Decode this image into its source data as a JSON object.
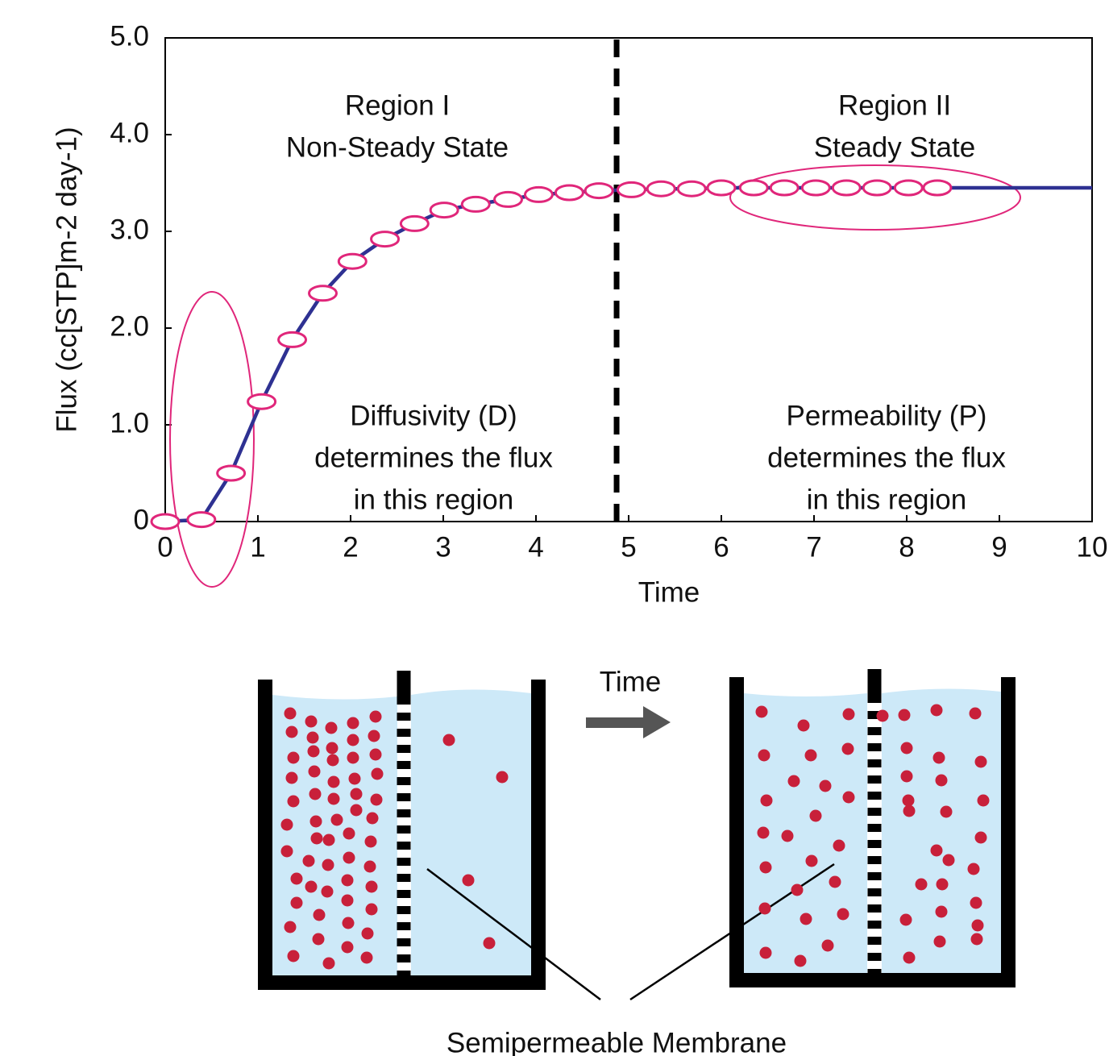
{
  "chart_data": {
    "type": "line",
    "x_label": "Time",
    "y_label": "Flux (cc[STP]m-2 day-1)",
    "xlim": [
      0,
      10
    ],
    "xticks": [
      0,
      1,
      2,
      3,
      4,
      5,
      6,
      7,
      8,
      9,
      10
    ],
    "ylim": [
      0,
      5
    ],
    "yticks": [
      0,
      {
        "value": 1,
        "label": "1.0"
      },
      {
        "value": 2,
        "label": "2.0"
      },
      {
        "value": 3,
        "label": "3.0"
      },
      {
        "value": 4,
        "label": "4.0"
      },
      {
        "value": 5,
        "label": "5.0"
      }
    ],
    "divider_x": 4.87,
    "annotations": [
      "Region I",
      "Non-Steady State",
      "Region II",
      "Steady State",
      "Diffusivity (D)",
      "determines the flux",
      "in this region",
      "Permeability (P)",
      "determines the flux",
      "in this region"
    ],
    "series": [
      {
        "style": "line",
        "color": "#2e3192",
        "x": [
          0,
          0.39,
          0.71,
          1.04,
          1.37,
          1.7,
          2.02,
          2.37,
          2.69,
          3.01,
          3.35,
          3.7,
          4.03,
          4.36,
          4.68,
          5.03,
          5.35,
          5.68,
          6.0,
          6.35,
          6.68,
          7.02,
          7.35,
          7.68,
          8.02,
          8.33,
          10
        ],
        "values": [
          0,
          0.02,
          0.5,
          1.24,
          1.88,
          2.36,
          2.69,
          2.92,
          3.08,
          3.22,
          3.28,
          3.33,
          3.38,
          3.4,
          3.42,
          3.43,
          3.44,
          3.44,
          3.45,
          3.45,
          3.45,
          3.45,
          3.45,
          3.45,
          3.45,
          3.45,
          3.45
        ]
      },
      {
        "style": "markers",
        "color": "#e0267a",
        "x": [
          0,
          0.39,
          0.71,
          1.04,
          1.37,
          1.7,
          2.02,
          2.37,
          2.69,
          3.01,
          3.35,
          3.7,
          4.03,
          4.36,
          4.68,
          5.03,
          5.35,
          5.68,
          6.0,
          6.35,
          6.68,
          7.02,
          7.35,
          7.68,
          8.02,
          8.33
        ],
        "values": [
          0,
          0.02,
          0.5,
          1.24,
          1.88,
          2.36,
          2.69,
          2.92,
          3.08,
          3.22,
          3.28,
          3.33,
          3.38,
          3.4,
          3.42,
          3.43,
          3.44,
          3.44,
          3.45,
          3.45,
          3.45,
          3.45,
          3.45,
          3.45,
          3.45,
          3.45
        ]
      }
    ]
  },
  "diagram": {
    "arrow_label": "Time",
    "membrane_label": "Semipermeable Membrane"
  }
}
